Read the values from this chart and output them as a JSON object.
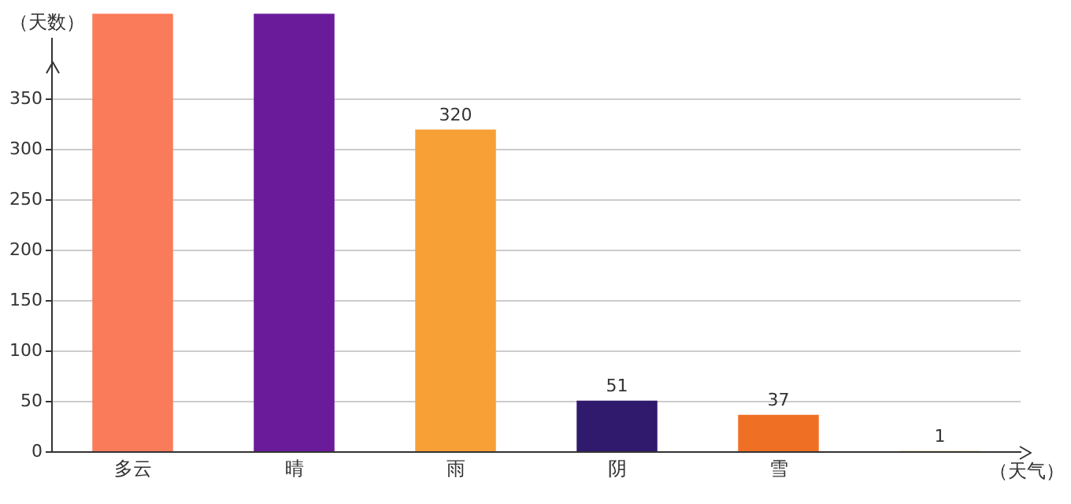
{
  "chart_data": {
    "type": "bar",
    "ylabel": "（天数）",
    "xlabel": "（天气）",
    "categories": [
      "多云",
      "晴",
      "雨",
      "阴",
      "雪",
      null
    ],
    "values": [
      435,
      435,
      320,
      51,
      37,
      1
    ],
    "colors": [
      "#fa7b5a",
      "#6a1b9a",
      "#f7a035",
      "#2f1a6e",
      "#ef7024",
      "#e8a33a"
    ],
    "value_labels": [
      null,
      null,
      "320",
      "51",
      "37",
      "1"
    ],
    "ylim": [
      0,
      435
    ],
    "yticks": [
      0,
      50,
      100,
      150,
      200,
      250,
      300,
      350
    ],
    "grid": "y",
    "legend": false
  }
}
